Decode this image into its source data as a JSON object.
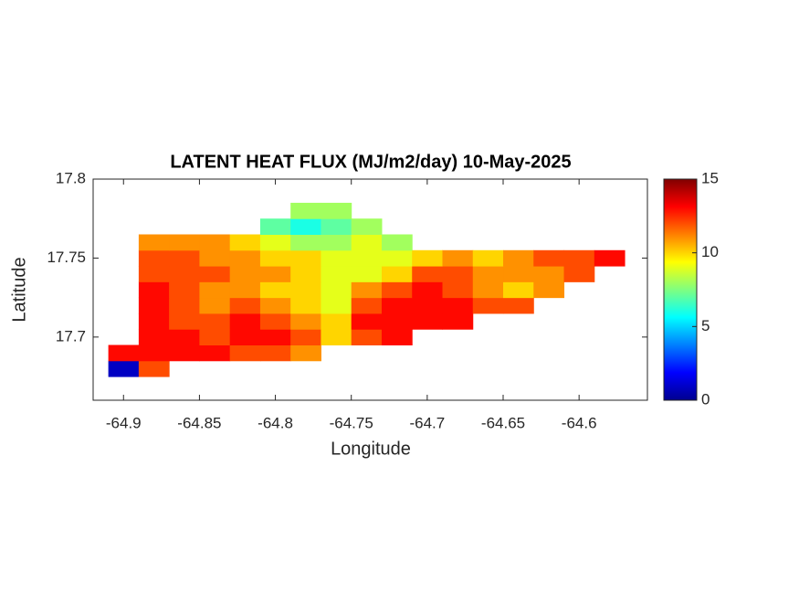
{
  "chart_data": {
    "type": "heatmap",
    "title": "LATENT HEAT FLUX (MJ/m2/day) 10-May-2025",
    "xlabel": "Longitude",
    "ylabel": "Latitude",
    "xlim": [
      -64.92,
      -64.555
    ],
    "ylim": [
      17.66,
      17.8
    ],
    "xticks": [
      -64.9,
      -64.85,
      -64.8,
      -64.75,
      -64.7,
      -64.65,
      -64.6
    ],
    "yticks": [
      17.7,
      17.75,
      17.8
    ],
    "colormap": "jet",
    "clim": [
      0,
      15
    ],
    "cticks": [
      0,
      5,
      10,
      15
    ],
    "x": [
      -64.9,
      -64.88,
      -64.86,
      -64.84,
      -64.82,
      -64.8,
      -64.78,
      -64.76,
      -64.74,
      -64.72,
      -64.7,
      -64.68,
      -64.66,
      -64.64,
      -64.62,
      -64.6,
      -64.58
    ],
    "y": [
      17.68,
      17.69,
      17.7,
      17.71,
      17.72,
      17.73,
      17.74,
      17.75,
      17.76,
      17.77,
      17.78
    ],
    "z": [
      [
        1,
        12,
        null,
        null,
        null,
        null,
        null,
        null,
        null,
        null,
        null,
        null,
        null,
        null,
        null,
        null,
        null
      ],
      [
        13,
        13,
        13,
        13,
        12,
        12,
        11,
        null,
        null,
        null,
        null,
        null,
        null,
        null,
        null,
        null,
        null
      ],
      [
        null,
        13,
        13,
        12,
        13,
        13,
        12,
        10,
        12,
        13,
        null,
        null,
        null,
        null,
        null,
        null,
        null
      ],
      [
        null,
        13,
        12,
        12,
        13,
        12,
        11,
        10,
        13,
        13,
        13,
        13,
        null,
        null,
        null,
        null,
        null
      ],
      [
        null,
        13,
        12,
        11,
        12,
        11,
        10,
        9,
        12,
        13,
        13,
        13,
        12,
        12,
        null,
        null,
        null
      ],
      [
        null,
        13,
        12,
        11,
        11,
        10,
        10,
        9,
        11,
        12,
        13,
        12,
        11,
        10,
        11,
        null,
        null
      ],
      [
        null,
        12,
        12,
        12,
        11,
        11,
        10,
        9,
        9,
        10,
        12,
        12,
        11,
        11,
        11,
        12,
        null
      ],
      [
        null,
        12,
        12,
        11,
        11,
        10,
        10,
        9,
        9,
        9,
        10,
        11,
        10,
        11,
        12,
        12,
        13
      ],
      [
        null,
        11,
        11,
        11,
        10,
        9,
        8,
        8,
        9,
        8,
        null,
        null,
        null,
        null,
        null,
        null,
        null
      ],
      [
        null,
        null,
        null,
        null,
        null,
        7,
        6,
        7,
        8,
        null,
        null,
        null,
        null,
        null,
        null,
        null,
        null
      ],
      [
        null,
        null,
        null,
        null,
        null,
        null,
        8,
        8,
        null,
        null,
        null,
        null,
        null,
        null,
        null,
        null,
        null
      ]
    ]
  }
}
